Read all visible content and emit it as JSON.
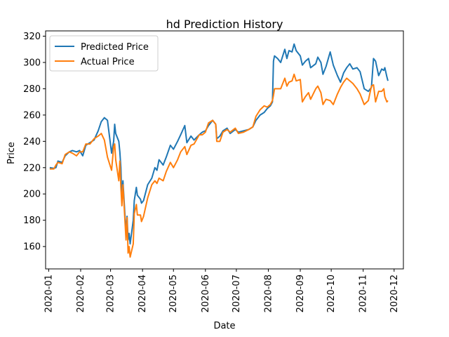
{
  "chart_data": {
    "type": "line",
    "title": "hd Prediction History",
    "xlabel": "Date",
    "ylabel": "Price",
    "x_ticks": [
      "2020-01",
      "2020-02",
      "2020-03",
      "2020-04",
      "2020-05",
      "2020-06",
      "2020-07",
      "2020-08",
      "2020-09",
      "2020-10",
      "2020-11",
      "2020-12"
    ],
    "y_ticks": [
      160,
      180,
      200,
      220,
      240,
      260,
      280,
      300,
      320
    ],
    "xlim": [
      "2019-12-29",
      "2020-12-10"
    ],
    "ylim": [
      143.0,
      324.0
    ],
    "grid": false,
    "legend_position": "upper-left",
    "series": [
      {
        "name": "Predicted Price",
        "color": "#1f77b4",
        "points": [
          [
            "2020-01-02",
            220
          ],
          [
            "2020-01-06",
            219.5
          ],
          [
            "2020-01-08",
            220
          ],
          [
            "2020-01-10",
            225
          ],
          [
            "2020-01-14",
            224
          ],
          [
            "2020-01-17",
            229
          ],
          [
            "2020-01-21",
            232
          ],
          [
            "2020-01-24",
            233
          ],
          [
            "2020-01-28",
            232
          ],
          [
            "2020-01-31",
            233
          ],
          [
            "2020-02-03",
            229
          ],
          [
            "2020-02-06",
            237
          ],
          [
            "2020-02-10",
            239
          ],
          [
            "2020-02-14",
            241
          ],
          [
            "2020-02-18",
            248
          ],
          [
            "2020-02-21",
            255
          ],
          [
            "2020-02-24",
            258
          ],
          [
            "2020-02-27",
            256
          ],
          [
            "2020-03-02",
            231
          ],
          [
            "2020-03-04",
            240
          ],
          [
            "2020-03-05",
            253
          ],
          [
            "2020-03-06",
            246
          ],
          [
            "2020-03-09",
            240
          ],
          [
            "2020-03-10",
            232
          ],
          [
            "2020-03-11",
            220
          ],
          [
            "2020-03-12",
            195
          ],
          [
            "2020-03-13",
            210
          ],
          [
            "2020-03-16",
            170
          ],
          [
            "2020-03-17",
            183
          ],
          [
            "2020-03-18",
            165
          ],
          [
            "2020-03-19",
            170
          ],
          [
            "2020-03-20",
            162
          ],
          [
            "2020-03-23",
            180
          ],
          [
            "2020-03-24",
            195
          ],
          [
            "2020-03-26",
            205
          ],
          [
            "2020-03-27",
            199
          ],
          [
            "2020-03-30",
            196
          ],
          [
            "2020-03-31",
            193
          ],
          [
            "2020-04-02",
            195
          ],
          [
            "2020-04-06",
            207
          ],
          [
            "2020-04-10",
            212
          ],
          [
            "2020-04-13",
            220
          ],
          [
            "2020-04-15",
            218
          ],
          [
            "2020-04-17",
            226
          ],
          [
            "2020-04-21",
            222
          ],
          [
            "2020-04-24",
            228
          ],
          [
            "2020-04-28",
            237
          ],
          [
            "2020-05-01",
            234
          ],
          [
            "2020-05-05",
            240
          ],
          [
            "2020-05-08",
            245
          ],
          [
            "2020-05-12",
            252
          ],
          [
            "2020-05-14",
            239
          ],
          [
            "2020-05-18",
            244
          ],
          [
            "2020-05-21",
            241
          ],
          [
            "2020-05-26",
            245
          ],
          [
            "2020-05-29",
            247
          ],
          [
            "2020-06-01",
            248
          ],
          [
            "2020-06-04",
            252
          ],
          [
            "2020-06-08",
            256
          ],
          [
            "2020-06-11",
            253
          ],
          [
            "2020-06-12",
            242
          ],
          [
            "2020-06-15",
            244
          ],
          [
            "2020-06-18",
            248
          ],
          [
            "2020-06-22",
            250
          ],
          [
            "2020-06-25",
            246
          ],
          [
            "2020-06-30",
            249
          ],
          [
            "2020-07-03",
            247
          ],
          [
            "2020-07-08",
            248
          ],
          [
            "2020-07-13",
            249
          ],
          [
            "2020-07-17",
            251
          ],
          [
            "2020-07-20",
            256
          ],
          [
            "2020-07-24",
            260
          ],
          [
            "2020-07-28",
            262
          ],
          [
            "2020-07-31",
            265
          ],
          [
            "2020-08-03",
            267
          ],
          [
            "2020-08-05",
            270
          ],
          [
            "2020-08-06",
            301
          ],
          [
            "2020-08-07",
            305
          ],
          [
            "2020-08-10",
            303
          ],
          [
            "2020-08-13",
            300
          ],
          [
            "2020-08-17",
            310
          ],
          [
            "2020-08-19",
            303
          ],
          [
            "2020-08-21",
            309
          ],
          [
            "2020-08-24",
            308
          ],
          [
            "2020-08-26",
            314
          ],
          [
            "2020-08-28",
            309
          ],
          [
            "2020-09-01",
            305
          ],
          [
            "2020-09-03",
            298
          ],
          [
            "2020-09-06",
            301
          ],
          [
            "2020-09-09",
            303
          ],
          [
            "2020-09-11",
            296
          ],
          [
            "2020-09-16",
            299
          ],
          [
            "2020-09-18",
            304
          ],
          [
            "2020-09-21",
            300
          ],
          [
            "2020-09-23",
            291
          ],
          [
            "2020-09-26",
            297
          ],
          [
            "2020-09-30",
            308
          ],
          [
            "2020-10-03",
            298
          ],
          [
            "2020-10-07",
            290
          ],
          [
            "2020-10-10",
            285
          ],
          [
            "2020-10-13",
            292
          ],
          [
            "2020-10-16",
            296
          ],
          [
            "2020-10-19",
            299
          ],
          [
            "2020-10-22",
            295
          ],
          [
            "2020-10-26",
            296
          ],
          [
            "2020-10-29",
            293
          ],
          [
            "2020-11-02",
            280
          ],
          [
            "2020-11-06",
            278
          ],
          [
            "2020-11-09",
            281
          ],
          [
            "2020-11-11",
            303
          ],
          [
            "2020-11-13",
            301
          ],
          [
            "2020-11-16",
            290
          ],
          [
            "2020-11-19",
            295
          ],
          [
            "2020-11-21",
            294
          ],
          [
            "2020-11-22",
            296
          ],
          [
            "2020-11-24",
            289
          ],
          [
            "2020-11-25",
            286
          ]
        ]
      },
      {
        "name": "Actual Price",
        "color": "#ff7f0e",
        "points": [
          [
            "2020-01-02",
            219
          ],
          [
            "2020-01-06",
            219
          ],
          [
            "2020-01-08",
            222
          ],
          [
            "2020-01-10",
            224
          ],
          [
            "2020-01-14",
            223
          ],
          [
            "2020-01-17",
            230
          ],
          [
            "2020-01-21",
            232
          ],
          [
            "2020-01-24",
            231
          ],
          [
            "2020-01-28",
            229
          ],
          [
            "2020-01-31",
            232
          ],
          [
            "2020-02-03",
            232
          ],
          [
            "2020-02-06",
            238
          ],
          [
            "2020-02-10",
            238
          ],
          [
            "2020-02-14",
            242
          ],
          [
            "2020-02-18",
            244
          ],
          [
            "2020-02-21",
            246
          ],
          [
            "2020-02-24",
            241
          ],
          [
            "2020-02-27",
            228
          ],
          [
            "2020-03-02",
            218
          ],
          [
            "2020-03-04",
            236
          ],
          [
            "2020-03-05",
            238
          ],
          [
            "2020-03-06",
            226
          ],
          [
            "2020-03-09",
            210
          ],
          [
            "2020-03-10",
            225
          ],
          [
            "2020-03-11",
            205
          ],
          [
            "2020-03-12",
            191
          ],
          [
            "2020-03-13",
            207
          ],
          [
            "2020-03-16",
            165
          ],
          [
            "2020-03-17",
            182
          ],
          [
            "2020-03-18",
            155
          ],
          [
            "2020-03-19",
            160
          ],
          [
            "2020-03-20",
            152
          ],
          [
            "2020-03-23",
            162
          ],
          [
            "2020-03-24",
            185
          ],
          [
            "2020-03-26",
            192
          ],
          [
            "2020-03-27",
            184
          ],
          [
            "2020-03-30",
            184
          ],
          [
            "2020-03-31",
            179
          ],
          [
            "2020-04-02",
            183
          ],
          [
            "2020-04-06",
            197
          ],
          [
            "2020-04-10",
            207
          ],
          [
            "2020-04-13",
            210
          ],
          [
            "2020-04-15",
            208
          ],
          [
            "2020-04-17",
            212
          ],
          [
            "2020-04-21",
            210
          ],
          [
            "2020-04-24",
            217
          ],
          [
            "2020-04-28",
            224
          ],
          [
            "2020-05-01",
            220
          ],
          [
            "2020-05-05",
            226
          ],
          [
            "2020-05-08",
            232
          ],
          [
            "2020-05-12",
            236
          ],
          [
            "2020-05-14",
            230
          ],
          [
            "2020-05-18",
            237
          ],
          [
            "2020-05-21",
            238
          ],
          [
            "2020-05-26",
            245
          ],
          [
            "2020-05-29",
            245
          ],
          [
            "2020-06-01",
            247
          ],
          [
            "2020-06-04",
            254
          ],
          [
            "2020-06-08",
            256
          ],
          [
            "2020-06-11",
            253
          ],
          [
            "2020-06-12",
            240
          ],
          [
            "2020-06-15",
            240
          ],
          [
            "2020-06-18",
            247
          ],
          [
            "2020-06-22",
            249
          ],
          [
            "2020-06-25",
            247
          ],
          [
            "2020-06-30",
            250
          ],
          [
            "2020-07-03",
            246
          ],
          [
            "2020-07-08",
            247
          ],
          [
            "2020-07-13",
            249
          ],
          [
            "2020-07-17",
            251
          ],
          [
            "2020-07-20",
            259
          ],
          [
            "2020-07-24",
            264
          ],
          [
            "2020-07-28",
            267
          ],
          [
            "2020-07-31",
            266
          ],
          [
            "2020-08-03",
            268
          ],
          [
            "2020-08-05",
            271
          ],
          [
            "2020-08-06",
            275
          ],
          [
            "2020-08-07",
            280
          ],
          [
            "2020-08-10",
            280
          ],
          [
            "2020-08-13",
            280
          ],
          [
            "2020-08-17",
            288
          ],
          [
            "2020-08-19",
            282
          ],
          [
            "2020-08-21",
            285
          ],
          [
            "2020-08-24",
            286
          ],
          [
            "2020-08-26",
            291
          ],
          [
            "2020-08-28",
            286
          ],
          [
            "2020-09-01",
            287
          ],
          [
            "2020-09-03",
            270
          ],
          [
            "2020-09-06",
            274
          ],
          [
            "2020-09-09",
            277
          ],
          [
            "2020-09-11",
            272
          ],
          [
            "2020-09-16",
            280
          ],
          [
            "2020-09-18",
            282
          ],
          [
            "2020-09-21",
            277
          ],
          [
            "2020-09-23",
            268
          ],
          [
            "2020-09-26",
            272
          ],
          [
            "2020-09-30",
            271
          ],
          [
            "2020-10-03",
            268
          ],
          [
            "2020-10-07",
            276
          ],
          [
            "2020-10-10",
            281
          ],
          [
            "2020-10-13",
            285
          ],
          [
            "2020-10-16",
            288
          ],
          [
            "2020-10-19",
            286
          ],
          [
            "2020-10-22",
            284
          ],
          [
            "2020-10-26",
            280
          ],
          [
            "2020-10-29",
            276
          ],
          [
            "2020-11-02",
            268
          ],
          [
            "2020-11-06",
            271
          ],
          [
            "2020-11-09",
            282
          ],
          [
            "2020-11-11",
            283
          ],
          [
            "2020-11-13",
            270
          ],
          [
            "2020-11-16",
            278
          ],
          [
            "2020-11-19",
            278
          ],
          [
            "2020-11-21",
            280
          ],
          [
            "2020-11-22",
            274
          ],
          [
            "2020-11-24",
            270
          ],
          [
            "2020-11-25",
            271
          ]
        ]
      }
    ]
  }
}
